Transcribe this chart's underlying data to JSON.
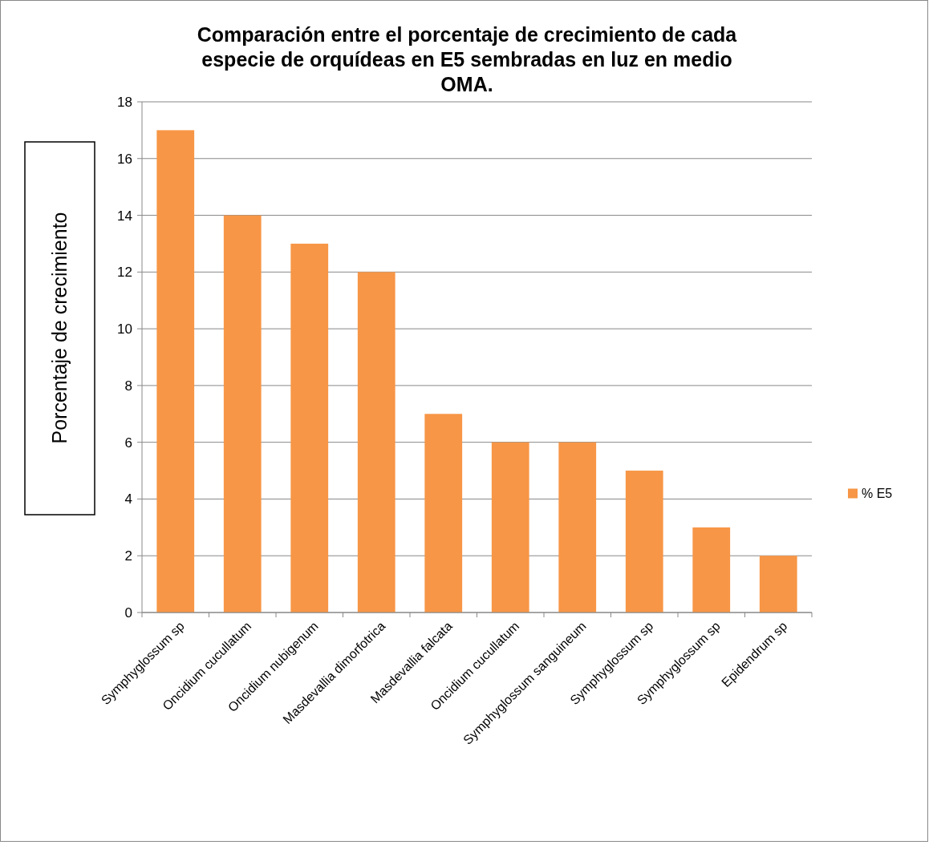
{
  "chart_data": {
    "type": "bar",
    "title": "Comparación entre el porcentaje de crecimiento de cada especie de orquídeas en E5 sembradas en luz en medio OMA.",
    "ylabel": "Porcentaje de crecimiento",
    "categories": [
      "Symphyglossum sp",
      "Oncidium cucullatum",
      "Oncidium nubigenum",
      "Masdevallia dimorfotrica",
      "Masdevallia falcata",
      "Oncidium cucullatum",
      "Symphyglossum sanguineum",
      "Symphyglossum sp",
      "Symphyglossum sp",
      "Epidendrum sp"
    ],
    "series": [
      {
        "name": "% E5",
        "color": "#f79646",
        "values": [
          17,
          14,
          13,
          12,
          7,
          6,
          6,
          5,
          3,
          2
        ]
      }
    ],
    "ylim": [
      0,
      18
    ],
    "yticks": [
      0,
      2,
      4,
      6,
      8,
      10,
      12,
      14,
      16,
      18
    ],
    "grid": "y",
    "legend": "right"
  }
}
